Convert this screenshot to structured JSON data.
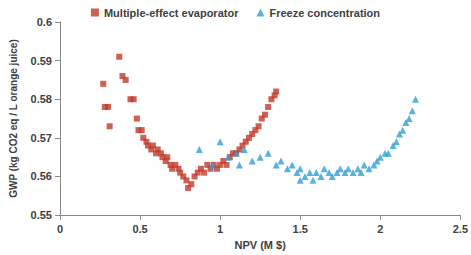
{
  "chart_data": {
    "type": "scatter",
    "x_label": "NPV (M $)",
    "y_label": "GWP (kg CO2 eq / L orange juice)",
    "xlim": [
      0,
      2.5
    ],
    "xticks": [
      0,
      0.5,
      1,
      1.5,
      2,
      2.5
    ],
    "ylim": [
      0.55,
      0.6
    ],
    "yticks": [
      0.55,
      0.56,
      0.57,
      0.58,
      0.59,
      0.6
    ],
    "grid": false,
    "legend": "top",
    "series": [
      {
        "name": "Multiple-effect evaporator",
        "color": "#c0392b",
        "marker": "square",
        "x": [
          0.27,
          0.28,
          0.3,
          0.31,
          0.37,
          0.39,
          0.41,
          0.44,
          0.46,
          0.48,
          0.49,
          0.51,
          0.52,
          0.54,
          0.55,
          0.57,
          0.58,
          0.6,
          0.61,
          0.63,
          0.64,
          0.66,
          0.67,
          0.69,
          0.7,
          0.72,
          0.74,
          0.75,
          0.77,
          0.79,
          0.8,
          0.82,
          0.84,
          0.86,
          0.88,
          0.9,
          0.92,
          0.94,
          0.96,
          0.98,
          1.0,
          1.02,
          1.04,
          1.06,
          1.08,
          1.1,
          1.12,
          1.14,
          1.16,
          1.18,
          1.2,
          1.22,
          1.24,
          1.26,
          1.28,
          1.3,
          1.32,
          1.34,
          1.35
        ],
        "values": [
          0.584,
          0.578,
          0.578,
          0.573,
          0.591,
          0.586,
          0.585,
          0.58,
          0.58,
          0.575,
          0.572,
          0.572,
          0.57,
          0.569,
          0.568,
          0.567,
          0.568,
          0.566,
          0.567,
          0.566,
          0.565,
          0.564,
          0.565,
          0.563,
          0.562,
          0.563,
          0.562,
          0.561,
          0.56,
          0.559,
          0.557,
          0.558,
          0.56,
          0.561,
          0.562,
          0.561,
          0.563,
          0.562,
          0.563,
          0.562,
          0.563,
          0.564,
          0.563,
          0.565,
          0.566,
          0.566,
          0.567,
          0.568,
          0.569,
          0.57,
          0.571,
          0.572,
          0.573,
          0.575,
          0.576,
          0.578,
          0.58,
          0.581,
          0.582
        ]
      },
      {
        "name": "Freeze concentration",
        "color": "#2e9fd8",
        "marker": "triangle",
        "x": [
          0.87,
          0.95,
          1.0,
          1.05,
          1.1,
          1.12,
          1.15,
          1.2,
          1.25,
          1.3,
          1.35,
          1.38,
          1.42,
          1.45,
          1.48,
          1.5,
          1.5,
          1.53,
          1.56,
          1.58,
          1.6,
          1.63,
          1.65,
          1.68,
          1.7,
          1.73,
          1.75,
          1.78,
          1.8,
          1.83,
          1.86,
          1.88,
          1.9,
          1.93,
          1.96,
          1.98,
          2.0,
          2.03,
          2.05,
          2.08,
          2.1,
          2.12,
          2.14,
          2.16,
          2.18,
          2.2,
          2.22
        ],
        "values": [
          0.567,
          0.563,
          0.569,
          0.565,
          0.566,
          0.563,
          0.567,
          0.564,
          0.565,
          0.566,
          0.563,
          0.564,
          0.562,
          0.563,
          0.561,
          0.562,
          0.559,
          0.56,
          0.561,
          0.559,
          0.561,
          0.56,
          0.562,
          0.561,
          0.56,
          0.561,
          0.562,
          0.561,
          0.562,
          0.561,
          0.562,
          0.561,
          0.563,
          0.562,
          0.563,
          0.564,
          0.565,
          0.566,
          0.566,
          0.568,
          0.569,
          0.571,
          0.572,
          0.574,
          0.575,
          0.577,
          0.58
        ]
      }
    ]
  }
}
